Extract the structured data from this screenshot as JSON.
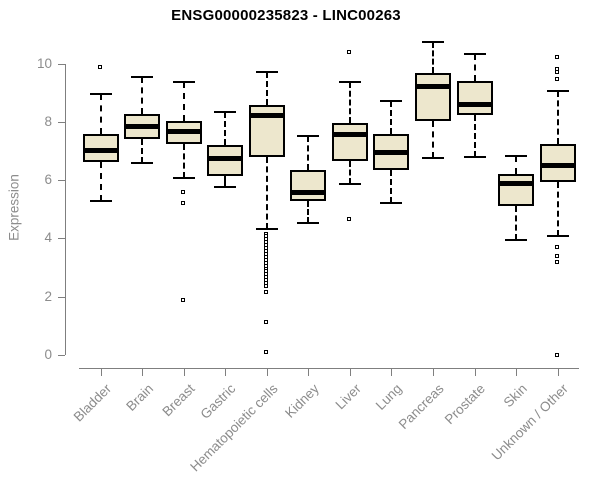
{
  "chart_data": {
    "type": "boxplot",
    "title": "ENSG00000235823 - LINC00263",
    "ylabel": "Expression",
    "ylim": [
      0,
      10.8
    ],
    "yticks": [
      0,
      2,
      4,
      6,
      8,
      10
    ],
    "grid": false,
    "legend": "none",
    "box_fill": "#EDE7CD",
    "box_border": "#000000",
    "axis_color": "#7f7f7f",
    "tick_label_color": "#8c8c8c",
    "title_color": "#000000",
    "categories": [
      "Bladder",
      "Brain",
      "Breast",
      "Gastric",
      "Hematopoietic cells",
      "Kidney",
      "Liver",
      "Lung",
      "Pancreas",
      "Prostate",
      "Skin",
      "Unknown / Other"
    ],
    "series": [
      {
        "category": "Bladder",
        "whisker_low": 5.28,
        "q1": 6.63,
        "median": 7.02,
        "q3": 7.59,
        "whisker_high": 8.94,
        "outliers": [
          9.86
        ]
      },
      {
        "category": "Brain",
        "whisker_low": 6.59,
        "q1": 7.42,
        "median": 7.83,
        "q3": 8.27,
        "whisker_high": 9.53,
        "outliers": []
      },
      {
        "category": "Breast",
        "whisker_low": 6.08,
        "q1": 7.25,
        "median": 7.66,
        "q3": 8.04,
        "whisker_high": 9.37,
        "outliers": [
          5.56,
          5.19,
          1.88
        ]
      },
      {
        "category": "Gastric",
        "whisker_low": 5.75,
        "q1": 6.13,
        "median": 6.73,
        "q3": 7.22,
        "whisker_high": 8.33,
        "outliers": []
      },
      {
        "category": "Hematopoietic cells",
        "whisker_low": 4.31,
        "q1": 6.79,
        "median": 8.23,
        "q3": 8.56,
        "whisker_high": 9.7,
        "outliers": [
          4.15,
          4.05,
          3.95,
          3.85,
          3.75,
          3.65,
          3.55,
          3.45,
          3.35,
          3.25,
          3.15,
          3.05,
          2.95,
          2.85,
          2.75,
          2.65,
          2.55,
          2.45,
          2.36,
          2.13,
          1.12,
          0.07
        ]
      },
      {
        "category": "Kidney",
        "whisker_low": 4.53,
        "q1": 5.28,
        "median": 5.57,
        "q3": 6.33,
        "whisker_high": 7.53,
        "outliers": []
      },
      {
        "category": "Liver",
        "whisker_low": 5.88,
        "q1": 6.67,
        "median": 7.56,
        "q3": 7.97,
        "whisker_high": 9.36,
        "outliers": [
          10.37,
          4.65
        ]
      },
      {
        "category": "Lung",
        "whisker_low": 5.22,
        "q1": 6.33,
        "median": 6.94,
        "q3": 7.59,
        "whisker_high": 8.71,
        "outliers": []
      },
      {
        "category": "Pancreas",
        "whisker_low": 6.77,
        "q1": 8.04,
        "median": 9.22,
        "q3": 9.68,
        "whisker_high": 10.73,
        "outliers": []
      },
      {
        "category": "Prostate",
        "whisker_low": 6.79,
        "q1": 8.22,
        "median": 8.59,
        "q3": 9.39,
        "whisker_high": 10.31,
        "outliers": []
      },
      {
        "category": "Skin",
        "whisker_low": 3.96,
        "q1": 5.1,
        "median": 5.88,
        "q3": 6.22,
        "whisker_high": 6.84,
        "outliers": []
      },
      {
        "category": "Unknown / Other",
        "whisker_low": 4.08,
        "q1": 5.93,
        "median": 6.5,
        "q3": 7.25,
        "whisker_high": 9.07,
        "outliers": [
          10.22,
          9.79,
          9.68,
          9.45,
          3.68,
          3.39,
          3.16,
          0.0
        ]
      }
    ]
  }
}
